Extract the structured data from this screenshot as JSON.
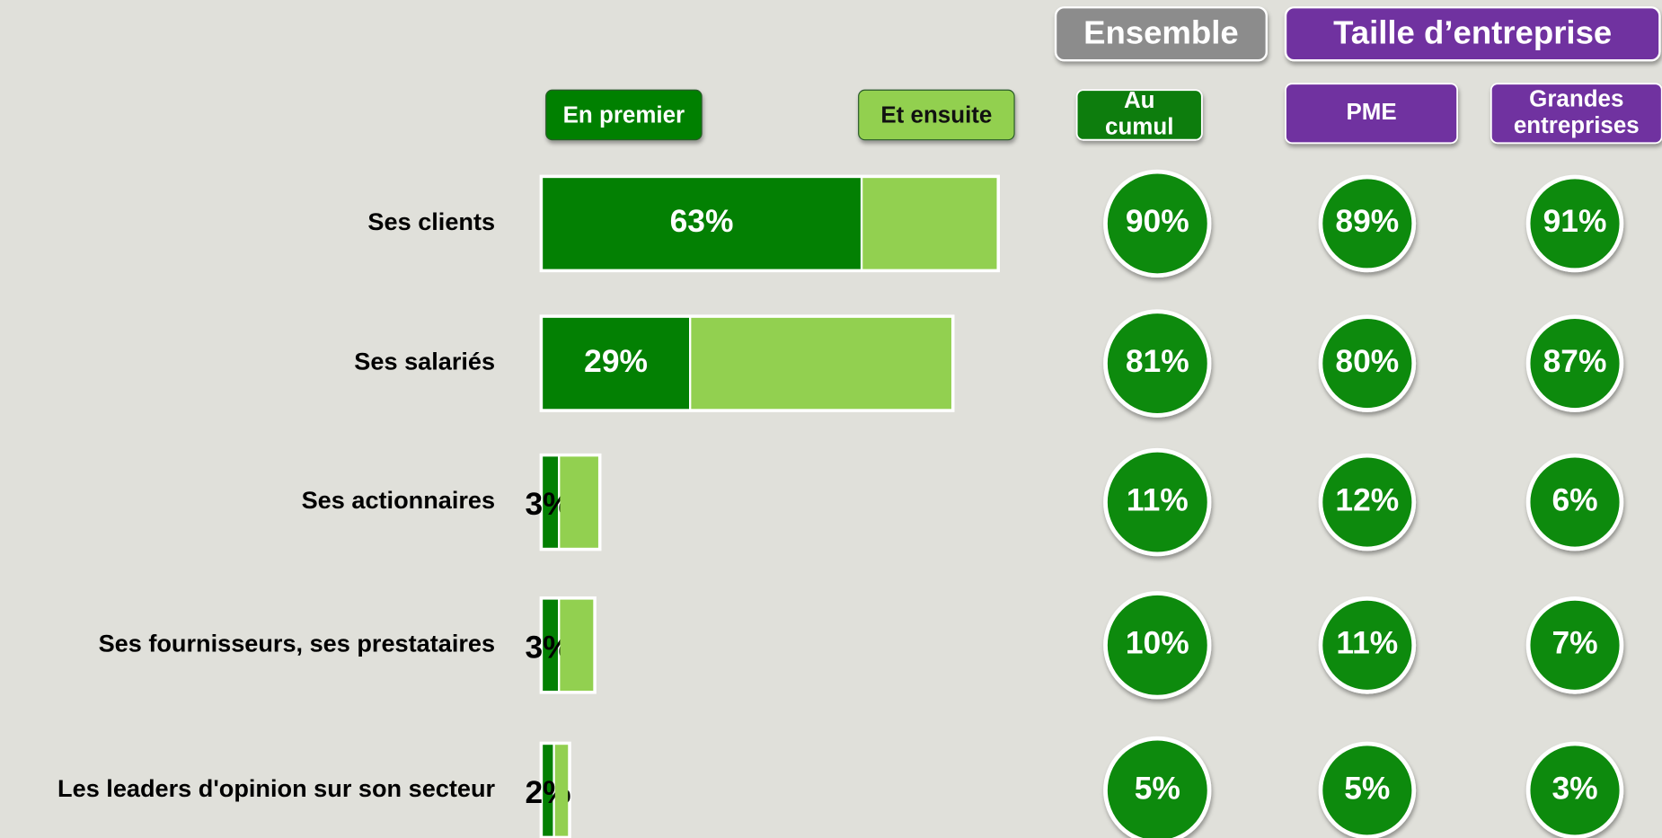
{
  "chart_data": {
    "type": "bar",
    "orientation": "horizontal",
    "stacked": true,
    "categories": [
      "Ses clients",
      "Ses salariés",
      "Ses actionnaires",
      "Ses fournisseurs, ses prestataires",
      "Les leaders d'opinion sur son secteur"
    ],
    "series": [
      {
        "name": "En premier",
        "color": "#038003",
        "values": [
          63,
          29,
          3,
          3,
          2
        ],
        "value_labels": [
          "63%",
          "29%",
          "3%",
          "3%",
          "2%"
        ]
      },
      {
        "name": "Et ensuite",
        "color": "#92d050",
        "values": [
          27,
          52,
          8,
          7,
          3
        ]
      }
    ],
    "groups": [
      {
        "name": "Ensemble",
        "color": "#8c8c8c",
        "columns": [
          {
            "name": "Au cumul",
            "color": "#0a7d0a",
            "values": [
              90,
              81,
              11,
              10,
              5
            ],
            "value_labels": [
              "90%",
              "81%",
              "11%",
              "10%",
              "5%"
            ]
          }
        ]
      },
      {
        "name": "Taille d’entreprise",
        "color": "#7030a0",
        "columns": [
          {
            "name": "PME",
            "color": "#7030a0",
            "values": [
              89,
              80,
              12,
              11,
              5
            ],
            "value_labels": [
              "89%",
              "80%",
              "12%",
              "11%",
              "5%"
            ]
          },
          {
            "name": "Grandes entreprises",
            "color": "#7030a0",
            "values": [
              91,
              87,
              6,
              7,
              3
            ],
            "value_labels": [
              "91%",
              "87%",
              "6%",
              "7%",
              "3%"
            ]
          }
        ]
      }
    ]
  }
}
